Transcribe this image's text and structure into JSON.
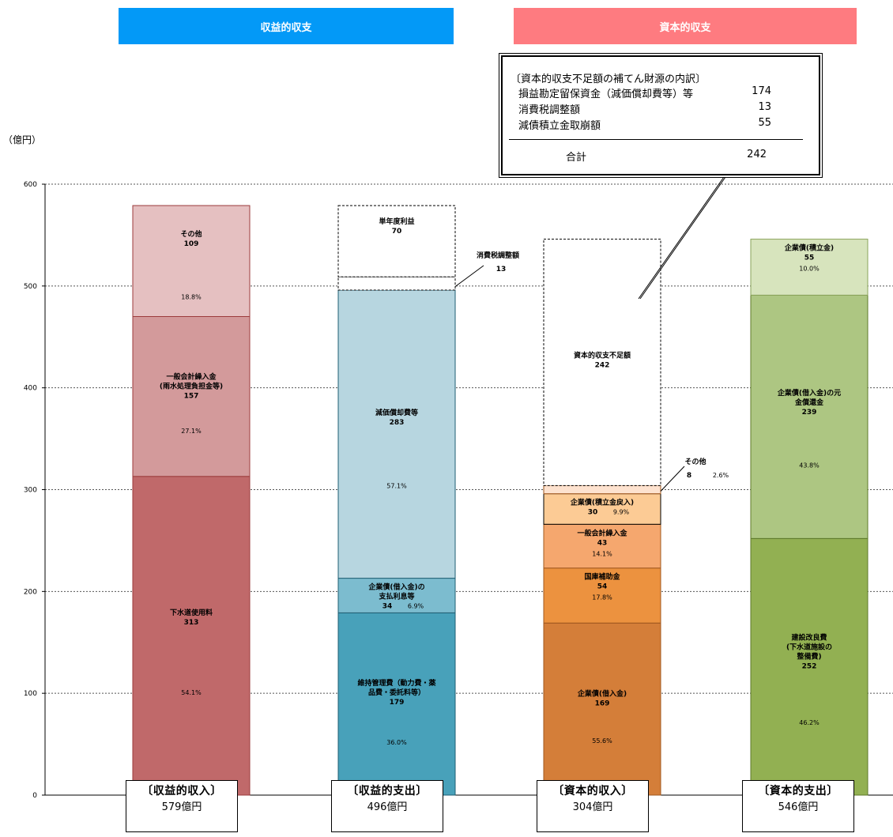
{
  "banners": {
    "revenue": "収益的収支",
    "capital": "資本的収支"
  },
  "unit_label": "（億円）",
  "note": {
    "title": "〔資本的収支不足額の補てん財源の内訳〕",
    "items": [
      {
        "label": "損益勘定留保資金（減価償却費等）等",
        "value": "174"
      },
      {
        "label": "消費税調整額",
        "value": "13"
      },
      {
        "label": "減債積立金取崩額",
        "value": "55"
      }
    ],
    "total_label": "合計",
    "total_value": "242"
  },
  "chart_data": {
    "type": "bar",
    "stacked": true,
    "ylim": [
      0,
      600
    ],
    "yticks": [
      0,
      100,
      200,
      300,
      400,
      500,
      600
    ],
    "grid": true,
    "categories": [
      {
        "name": "〔収益的収入〕",
        "total": "579億円"
      },
      {
        "name": "〔収益的支出〕",
        "total": "496億円"
      },
      {
        "name": "〔資本的収入〕",
        "total": "304億円"
      },
      {
        "name": "〔資本的支出〕",
        "total": "546億円"
      }
    ],
    "bars": [
      {
        "segments": [
          {
            "name": "下水道使用料",
            "value": 313,
            "pct": "54.1%",
            "color": "#c0696a",
            "border": "#9c3b3c"
          },
          {
            "name": "一般会計繰入金\n(雨水処理負担金等)",
            "value": 157,
            "pct": "27.1%",
            "color": "#d39a9b",
            "border": "#9c3b3c"
          },
          {
            "name": "その他",
            "value": 109,
            "pct": "18.8%",
            "color": "#e5c0c1",
            "border": "#9c3b3c"
          }
        ]
      },
      {
        "segments": [
          {
            "name": "維持管理費（動力費・薬\n品費・委託料等）",
            "value": 179,
            "pct": "36.0%",
            "color": "#48a1ba",
            "border": "#1f5f73"
          },
          {
            "name": "企業債(借入金)の\n支払利息等",
            "value": 34,
            "pct": "6.9%",
            "color": "#7cbccf",
            "border": "#1f5f73"
          },
          {
            "name": "減価償却費等",
            "value": 283,
            "pct": "57.1%",
            "color": "#b7d6e0",
            "border": "#1f5f73"
          },
          {
            "name": "消費税調整額",
            "value": 13,
            "pct": "",
            "color": "#ffffff",
            "border": "#000000",
            "dashed": true,
            "callout": true
          },
          {
            "name": "単年度利益",
            "value": 70,
            "pct": "",
            "color": "#ffffff",
            "border": "#000000",
            "dashed": true
          }
        ]
      },
      {
        "segments": [
          {
            "name": "企業債(借入金)",
            "value": 169,
            "pct": "55.6%",
            "color": "#d47e39",
            "border": "#a0581f"
          },
          {
            "name": "国庫補助金",
            "value": 54,
            "pct": "17.8%",
            "color": "#ec923f",
            "border": "#a0581f"
          },
          {
            "name": "一般会計繰入金",
            "value": 43,
            "pct": "14.1%",
            "color": "#f5a76e",
            "border": "#a0581f"
          },
          {
            "name": "企業債(積立金戻入)",
            "value": 30,
            "pct": "9.9%",
            "color": "#fccb95",
            "border": "#000000"
          },
          {
            "name": "その他",
            "value": 8,
            "pct": "2.6%",
            "color": "#fde2cf",
            "border": "#a0581f",
            "callout": true
          },
          {
            "name": "資本的収支不足額",
            "value": 242,
            "pct": "",
            "color": "#ffffff",
            "border": "#000000",
            "dashed": true
          }
        ]
      },
      {
        "segments": [
          {
            "name": "建設改良費\n(下水道施設の\n整備費)",
            "value": 252,
            "pct": "46.2%",
            "color": "#92b052",
            "border": "#5e7a2a"
          },
          {
            "name": "企業債(借入金)の元\n金償還金",
            "value": 239,
            "pct": "43.8%",
            "color": "#adc682",
            "border": "#5e7a2a"
          },
          {
            "name": "企業債(積立金)",
            "value": 55,
            "pct": "10.0%",
            "color": "#d7e4bd",
            "border": "#8aa35a"
          }
        ]
      }
    ]
  }
}
